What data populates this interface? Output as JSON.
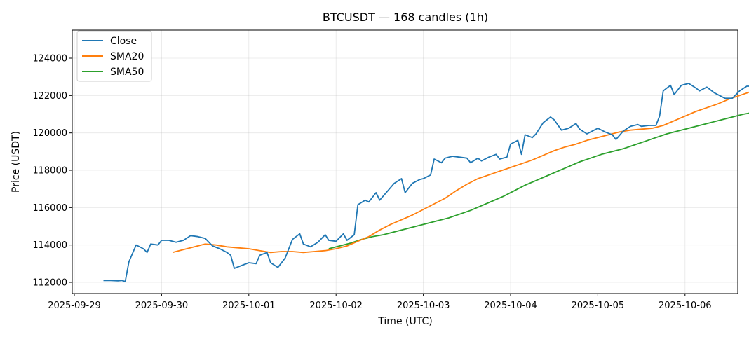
{
  "chart_data": {
    "type": "line",
    "title": "BTCUSDT — 168 candles (1h)",
    "xlabel": "Time (UTC)",
    "ylabel": "Price (USDT)",
    "x_ticks": [
      "2025-09-29",
      "2025-09-30",
      "2025-10-01",
      "2025-10-02",
      "2025-10-03",
      "2025-10-04",
      "2025-10-05",
      "2025-10-06"
    ],
    "y_ticks": [
      112000,
      114000,
      116000,
      118000,
      120000,
      122000,
      124000
    ],
    "y_tick_labels": [
      "112000",
      "114000",
      "116000",
      "118000",
      "120000",
      "122000",
      "124000"
    ],
    "ylim": [
      111400,
      125500
    ],
    "xlim": [
      "2025-09-28T23:10",
      "2025-10-06T15:10"
    ],
    "grid": true,
    "legend": "top-left",
    "series": [
      {
        "name": "Close",
        "color": "#1f77b4",
        "points": [
          [
            "2025-09-29T08:00",
            112100
          ],
          [
            "2025-09-29T10:00",
            112100
          ],
          [
            "2025-09-29T12:00",
            112080
          ],
          [
            "2025-09-29T14:00",
            112050
          ],
          [
            "2025-09-29T15:00",
            113100
          ],
          [
            "2025-09-29T17:00",
            114000
          ],
          [
            "2025-09-29T19:00",
            113600
          ],
          [
            "2025-09-29T21:00",
            114050
          ],
          [
            "2025-09-29T22:00",
            113950
          ],
          [
            "2025-09-30T00:00",
            114250
          ],
          [
            "2025-09-30T02:00",
            114200
          ],
          [
            "2025-09-30T04:00",
            114250
          ],
          [
            "2025-09-30T06:00",
            114500
          ],
          [
            "2025-09-30T08:00",
            114450
          ],
          [
            "2025-09-30T10:00",
            114350
          ],
          [
            "2025-09-30T12:00",
            113950
          ],
          [
            "2025-09-30T14:00",
            113800
          ],
          [
            "2025-09-30T16:00",
            113500
          ],
          [
            "2025-09-30T17:00",
            112750
          ],
          [
            "2025-09-30T19:00",
            112900
          ],
          [
            "2025-09-30T21:00",
            113050
          ],
          [
            "2025-09-30T22:00",
            113000
          ],
          [
            "2025-10-01T00:00",
            113450
          ],
          [
            "2025-10-01T02:00",
            113600
          ],
          [
            "2025-10-01T03:00",
            113050
          ],
          [
            "2025-10-01T05:00",
            112800
          ],
          [
            "2025-10-01T07:00",
            113300
          ],
          [
            "2025-10-01T09:00",
            114300
          ],
          [
            "2025-10-01T10:00",
            114600
          ],
          [
            "2025-10-01T12:00",
            114050
          ],
          [
            "2025-10-01T14:00",
            113900
          ],
          [
            "2025-10-01T16:00",
            114150
          ],
          [
            "2025-10-01T18:00",
            114550
          ],
          [
            "2025-10-01T20:00",
            114250
          ],
          [
            "2025-10-01T22:00",
            114200
          ],
          [
            "2025-10-02T00:00",
            114600
          ],
          [
            "2025-10-02T02:00",
            114250
          ],
          [
            "2025-10-02T03:00",
            114550
          ],
          [
            "2025-10-02T05:00",
            116150
          ],
          [
            "2025-10-02T07:00",
            116450
          ],
          [
            "2025-10-02T08:00",
            116300
          ],
          [
            "2025-10-02T10:00",
            116800
          ],
          [
            "2025-10-02T11:00",
            116400
          ],
          [
            "2025-10-02T13:00",
            116850
          ],
          [
            "2025-10-02T15:00",
            117300
          ],
          [
            "2025-10-02T17:00",
            117550
          ],
          [
            "2025-10-02T18:00",
            116800
          ],
          [
            "2025-10-02T20:00",
            117300
          ],
          [
            "2025-10-02T22:00",
            117500
          ],
          [
            "2025-10-03T00:00",
            117550
          ],
          [
            "2025-10-03T01:00",
            117750
          ],
          [
            "2025-10-03T03:00",
            118600
          ],
          [
            "2025-10-03T04:00",
            118400
          ],
          [
            "2025-10-03T06:00",
            118650
          ],
          [
            "2025-10-03T08:00",
            118750
          ],
          [
            "2025-10-03T10:00",
            118700
          ],
          [
            "2025-10-03T11:00",
            118650
          ],
          [
            "2025-10-03T13:00",
            118400
          ],
          [
            "2025-10-03T15:00",
            118650
          ],
          [
            "2025-10-03T16:00",
            118500
          ],
          [
            "2025-10-03T18:00",
            118700
          ],
          [
            "2025-10-03T20:00",
            118850
          ],
          [
            "2025-10-03T22:00",
            118600
          ],
          [
            "2025-10-04T00:00",
            118700
          ],
          [
            "2025-10-04T01:00",
            119400
          ],
          [
            "2025-10-04T03:00",
            119600
          ],
          [
            "2025-10-04T05:00",
            118850
          ],
          [
            "2025-10-04T07:00",
            119900
          ],
          [
            "2025-10-04T08:00",
            119750
          ],
          [
            "2025-10-04T10:00",
            119950
          ],
          [
            "2025-10-04T12:00",
            120550
          ],
          [
            "2025-10-04T14:00",
            120850
          ],
          [
            "2025-10-04T15:00",
            120700
          ],
          [
            "2025-10-04T17:00",
            120150
          ],
          [
            "2025-10-04T19:00",
            120250
          ],
          [
            "2025-10-04T21:00",
            120500
          ],
          [
            "2025-10-04T22:00",
            120200
          ],
          [
            "2025-10-05T00:00",
            119950
          ],
          [
            "2025-10-05T02:00",
            120150
          ],
          [
            "2025-10-05T04:00",
            120250
          ],
          [
            "2025-10-05T06:00",
            120050
          ],
          [
            "2025-10-05T08:00",
            119900
          ],
          [
            "2025-10-05T09:00",
            119650
          ],
          [
            "2025-10-05T11:00",
            120100
          ],
          [
            "2025-10-05T13:00",
            120350
          ],
          [
            "2025-10-05T15:00",
            120450
          ],
          [
            "2025-10-05T17:00",
            120350
          ],
          [
            "2025-10-05T19:00",
            120400
          ],
          [
            "2025-10-05T20:00",
            120900
          ],
          [
            "2025-10-05T22:00",
            122250
          ],
          [
            "2025-10-06T00:00",
            122550
          ],
          [
            "2025-10-06T01:00",
            122050
          ],
          [
            "2025-10-06T03:00",
            122550
          ],
          [
            "2025-10-06T05:00",
            122650
          ],
          [
            "2025-10-06T07:00",
            122400
          ],
          [
            "2025-10-06T09:00",
            122250
          ],
          [
            "2025-10-06T10:00",
            122450
          ],
          [
            "2025-10-06T12:00",
            122150
          ],
          [
            "2025-10-06T14:00",
            121950
          ],
          [
            "2025-10-06T15:00",
            121850
          ]
        ],
        "points_note": "continues below"
      }
    ]
  }
}
